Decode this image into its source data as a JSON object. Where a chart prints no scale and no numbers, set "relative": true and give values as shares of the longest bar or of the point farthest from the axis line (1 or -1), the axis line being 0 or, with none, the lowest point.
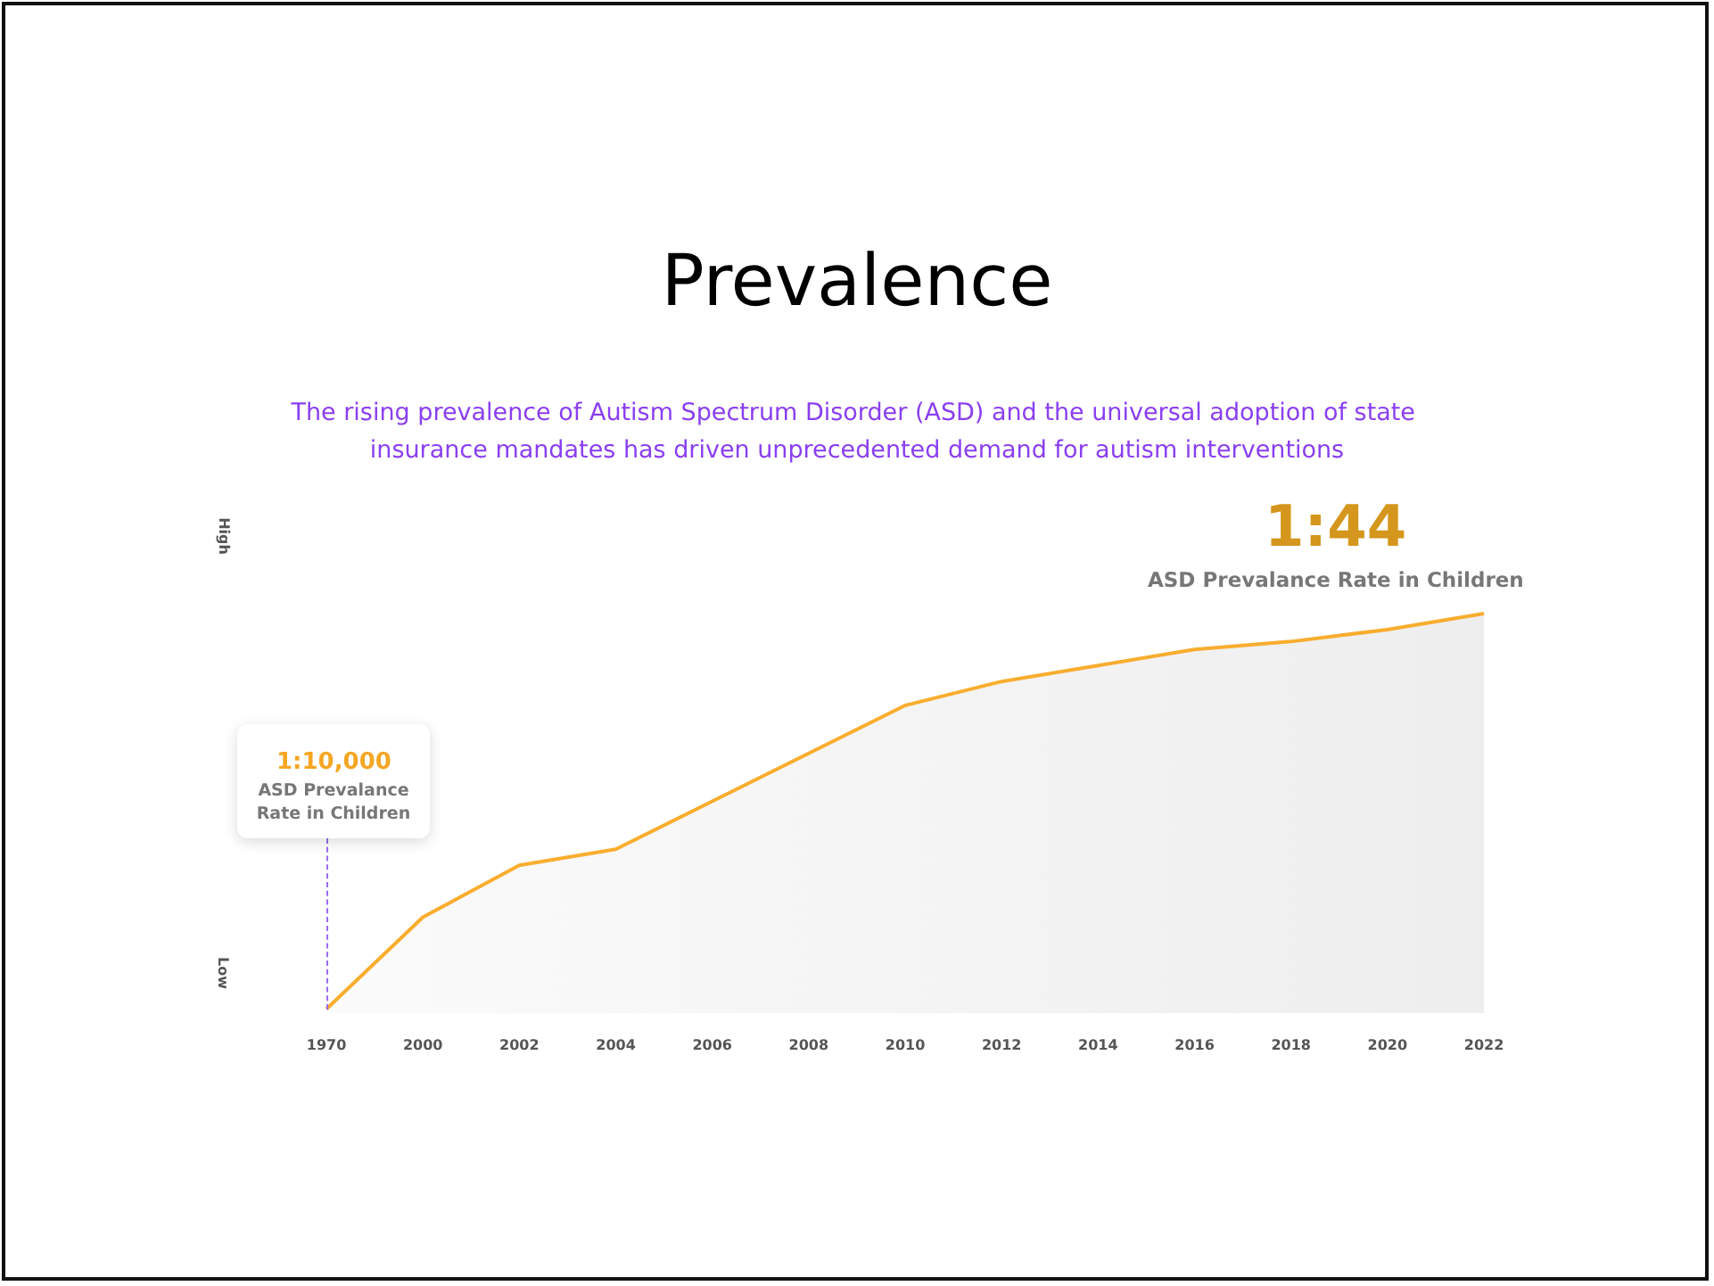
{
  "chart_data": {
    "type": "area",
    "title": "Prevalence",
    "subtitle": "The rising prevalence of Autism Spectrum Disorder (ASD) and the universal adoption of state insurance mandates has driven unprecedented demand for autism interventions",
    "categories": [
      "1970",
      "2000",
      "2002",
      "2004",
      "2006",
      "2008",
      "2010",
      "2012",
      "2014",
      "2016",
      "2018",
      "2020",
      "2022"
    ],
    "relative": true,
    "series": [
      {
        "color": "#f9ad2e",
        "values": [
          0.01,
          0.24,
          0.37,
          0.41,
          0.53,
          0.65,
          0.77,
          0.83,
          0.87,
          0.91,
          0.93,
          0.96,
          1.0
        ]
      }
    ],
    "annotations": [
      "High",
      "Low",
      "1:10,000",
      "ASD Prevalance Rate in Children",
      "1:44",
      "ASD Prevalance Rate in Children"
    ],
    "grid": false,
    "marker": "none"
  }
}
